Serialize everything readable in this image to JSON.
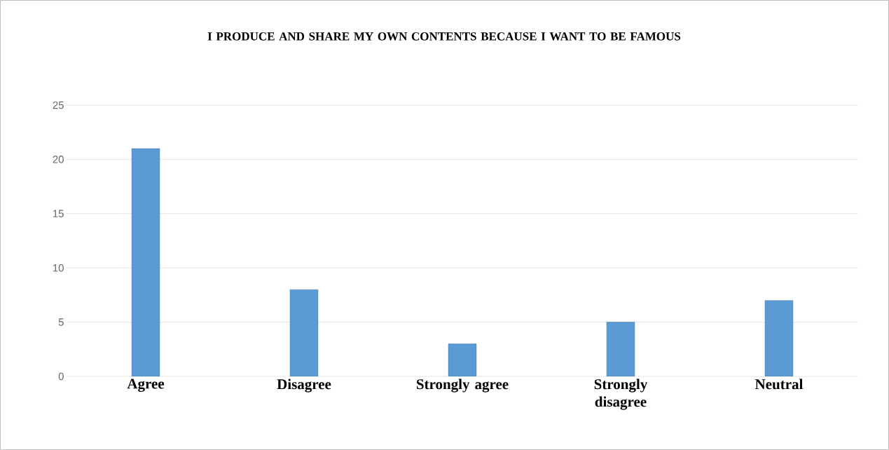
{
  "chart_data": {
    "type": "bar",
    "title": "I PRODUCE AND SHARE MY OWN CONTENTS BECAUSE I WANT TO BE FAMOUS",
    "categories": [
      "Agree",
      "Disagree",
      "Strongly agree",
      "Strongly disagree",
      "Neutral"
    ],
    "values": [
      21,
      8,
      3,
      5,
      7
    ],
    "color": "#5b9bd5",
    "ylim": [
      0,
      25
    ],
    "yticks": [
      0,
      5,
      10,
      15,
      20,
      25
    ],
    "grid": "y"
  }
}
